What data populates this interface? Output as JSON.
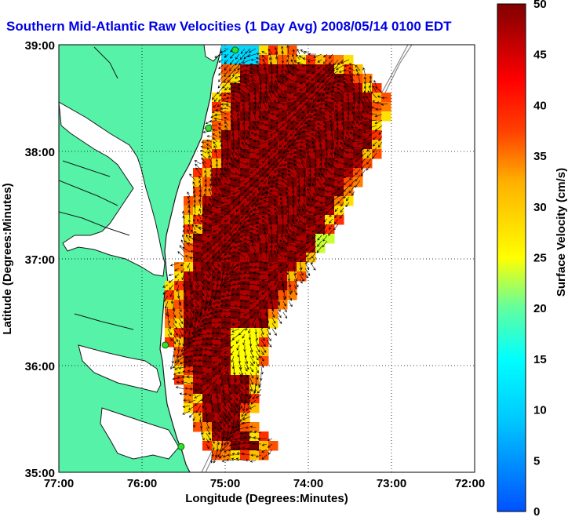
{
  "title": "Southern Mid-Atlantic Raw Velocities (1 Day Avg) 2008/05/14 0100 EDT",
  "colors": {
    "title": "#0000e6",
    "land": "#55f2a8",
    "coast": "#1a1a1a",
    "isobath": "#8c8c8c",
    "arrows": "#000000",
    "grid": "#000000"
  },
  "map": {
    "lon_range": [
      -77,
      -72
    ],
    "lat_range": [
      35,
      39
    ],
    "xlabel": "Longitude (Degrees:Minutes)",
    "ylabel": "Latitude (Degrees:Minutes)",
    "x_ticks": [
      "77:00",
      "76:00",
      "75:00",
      "74:00",
      "73:00",
      "72:00"
    ],
    "y_ticks": [
      "39:00",
      "38:00",
      "37:00",
      "36:00",
      "35:00"
    ],
    "grid": "dotted",
    "radar_sites": [
      {
        "lon": -74.88,
        "lat": 38.95
      },
      {
        "lon": -75.2,
        "lat": 38.22
      },
      {
        "lon": -75.72,
        "lat": 36.19
      },
      {
        "lon": -75.53,
        "lat": 35.24
      }
    ]
  },
  "colorbar": {
    "label": "Surface Velocity (cm/s)",
    "range": [
      0,
      50
    ],
    "ticks": [
      "0",
      "5",
      "10",
      "15",
      "20",
      "25",
      "30",
      "35",
      "40",
      "45",
      "50"
    ]
  }
}
